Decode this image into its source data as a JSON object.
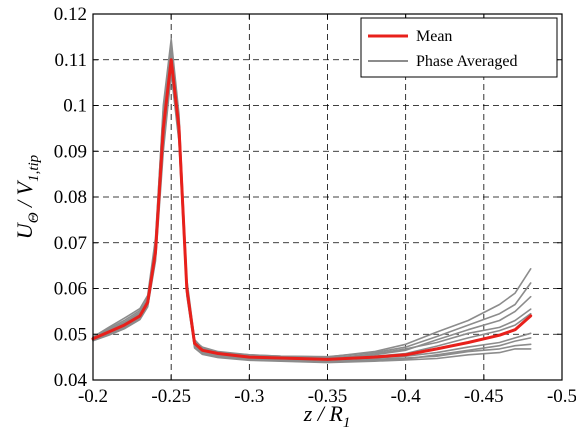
{
  "chart_data": {
    "type": "line",
    "title": "",
    "xlabel": "z / R",
    "xlabel_sub": "1",
    "ylabel": "U",
    "ylabel_sub": "Θ",
    "ylabel_mid": " / V",
    "ylabel_sub2": "1,tip",
    "xlim": [
      -0.2,
      -0.5
    ],
    "x_reversed": true,
    "ylim": [
      0.04,
      0.12
    ],
    "xticks": [
      -0.2,
      -0.25,
      -0.3,
      -0.35,
      -0.4,
      -0.45,
      -0.5
    ],
    "xtick_labels": [
      "-0.2",
      "-0.25",
      "-0.3",
      "-0.35",
      "-0.4",
      "-0.45",
      "-0.5"
    ],
    "yticks": [
      0.04,
      0.05,
      0.06,
      0.07,
      0.08,
      0.09,
      0.1,
      0.11,
      0.12
    ],
    "ytick_labels": [
      "0.04",
      "0.05",
      "0.06",
      "0.07",
      "0.08",
      "0.09",
      "0.1",
      "0.11",
      "0.12"
    ],
    "grid": "dashed",
    "legend_position": "top-right",
    "colors": {
      "mean": "#e8201b",
      "phase": "#8c8c8c"
    },
    "x": [
      -0.2,
      -0.21,
      -0.22,
      -0.23,
      -0.235,
      -0.24,
      -0.245,
      -0.25,
      -0.255,
      -0.26,
      -0.265,
      -0.27,
      -0.28,
      -0.3,
      -0.32,
      -0.35,
      -0.38,
      -0.4,
      -0.42,
      -0.44,
      -0.46,
      -0.47,
      -0.48
    ],
    "series": [
      {
        "name": "Mean",
        "role": "mean",
        "values": [
          0.049,
          0.0505,
          0.052,
          0.054,
          0.057,
          0.068,
          0.095,
          0.11,
          0.095,
          0.06,
          0.048,
          0.0465,
          0.0458,
          0.045,
          0.0448,
          0.0445,
          0.045,
          0.0455,
          0.0468,
          0.0482,
          0.0498,
          0.051,
          0.054
        ]
      },
      {
        "name": "Phase Averaged",
        "role": "phase",
        "values": [
          0.049,
          0.0508,
          0.0525,
          0.0545,
          0.058,
          0.07,
          0.1,
          0.1145,
          0.098,
          0.062,
          0.0488,
          0.047,
          0.046,
          0.0455,
          0.0452,
          0.045,
          0.0462,
          0.0478,
          0.0505,
          0.053,
          0.0565,
          0.059,
          0.0643
        ]
      },
      {
        "values": [
          0.0488,
          0.05,
          0.0515,
          0.0535,
          0.0565,
          0.067,
          0.092,
          0.1085,
          0.093,
          0.059,
          0.0475,
          0.046,
          0.0452,
          0.0446,
          0.0443,
          0.044,
          0.0445,
          0.0448,
          0.0452,
          0.0462,
          0.0468,
          0.0475,
          0.0478
        ]
      },
      {
        "values": [
          0.0492,
          0.0512,
          0.053,
          0.0552,
          0.0575,
          0.069,
          0.097,
          0.112,
          0.096,
          0.061,
          0.0482,
          0.0468,
          0.046,
          0.0453,
          0.045,
          0.0448,
          0.0455,
          0.0465,
          0.0488,
          0.051,
          0.053,
          0.055,
          0.0582
        ]
      },
      {
        "values": [
          0.0486,
          0.0498,
          0.0512,
          0.0532,
          0.056,
          0.066,
          0.09,
          0.107,
          0.092,
          0.0585,
          0.047,
          0.0456,
          0.0449,
          0.0443,
          0.0441,
          0.0438,
          0.0441,
          0.0444,
          0.0447,
          0.0455,
          0.046,
          0.0468,
          0.0468
        ]
      },
      {
        "values": [
          0.0494,
          0.0515,
          0.0535,
          0.0556,
          0.0585,
          0.071,
          0.099,
          0.1135,
          0.097,
          0.0605,
          0.0485,
          0.0472,
          0.0462,
          0.0455,
          0.0452,
          0.0451,
          0.046,
          0.0472,
          0.0495,
          0.052,
          0.0545,
          0.0565,
          0.0612
        ]
      },
      {
        "values": [
          0.0489,
          0.0503,
          0.0518,
          0.0538,
          0.0568,
          0.0675,
          0.094,
          0.1095,
          0.094,
          0.0595,
          0.0478,
          0.0463,
          0.0455,
          0.0448,
          0.0446,
          0.0443,
          0.0448,
          0.0452,
          0.046,
          0.0472,
          0.0482,
          0.0492,
          0.0502
        ]
      },
      {
        "values": [
          0.0491,
          0.0507,
          0.0522,
          0.0543,
          0.0572,
          0.068,
          0.096,
          0.111,
          0.094,
          0.0598,
          0.048,
          0.0466,
          0.0457,
          0.045,
          0.0447,
          0.0446,
          0.0452,
          0.0458,
          0.0474,
          0.0492,
          0.0508,
          0.052,
          0.0545
        ]
      },
      {
        "values": [
          0.0493,
          0.0509,
          0.0526,
          0.0548,
          0.0578,
          0.0695,
          0.098,
          0.1125,
          0.0965,
          0.0608,
          0.0483,
          0.0469,
          0.0459,
          0.0452,
          0.0449,
          0.0447,
          0.0457,
          0.0468,
          0.0482,
          0.0502,
          0.0515,
          0.053,
          0.0555
        ]
      },
      {
        "values": [
          0.0487,
          0.0501,
          0.0514,
          0.0534,
          0.0563,
          0.0665,
          0.093,
          0.1075,
          0.0925,
          0.0588,
          0.0472,
          0.0458,
          0.045,
          0.0444,
          0.0442,
          0.0439,
          0.0443,
          0.0446,
          0.0455,
          0.0465,
          0.0475,
          0.0485,
          0.0492
        ]
      }
    ]
  }
}
